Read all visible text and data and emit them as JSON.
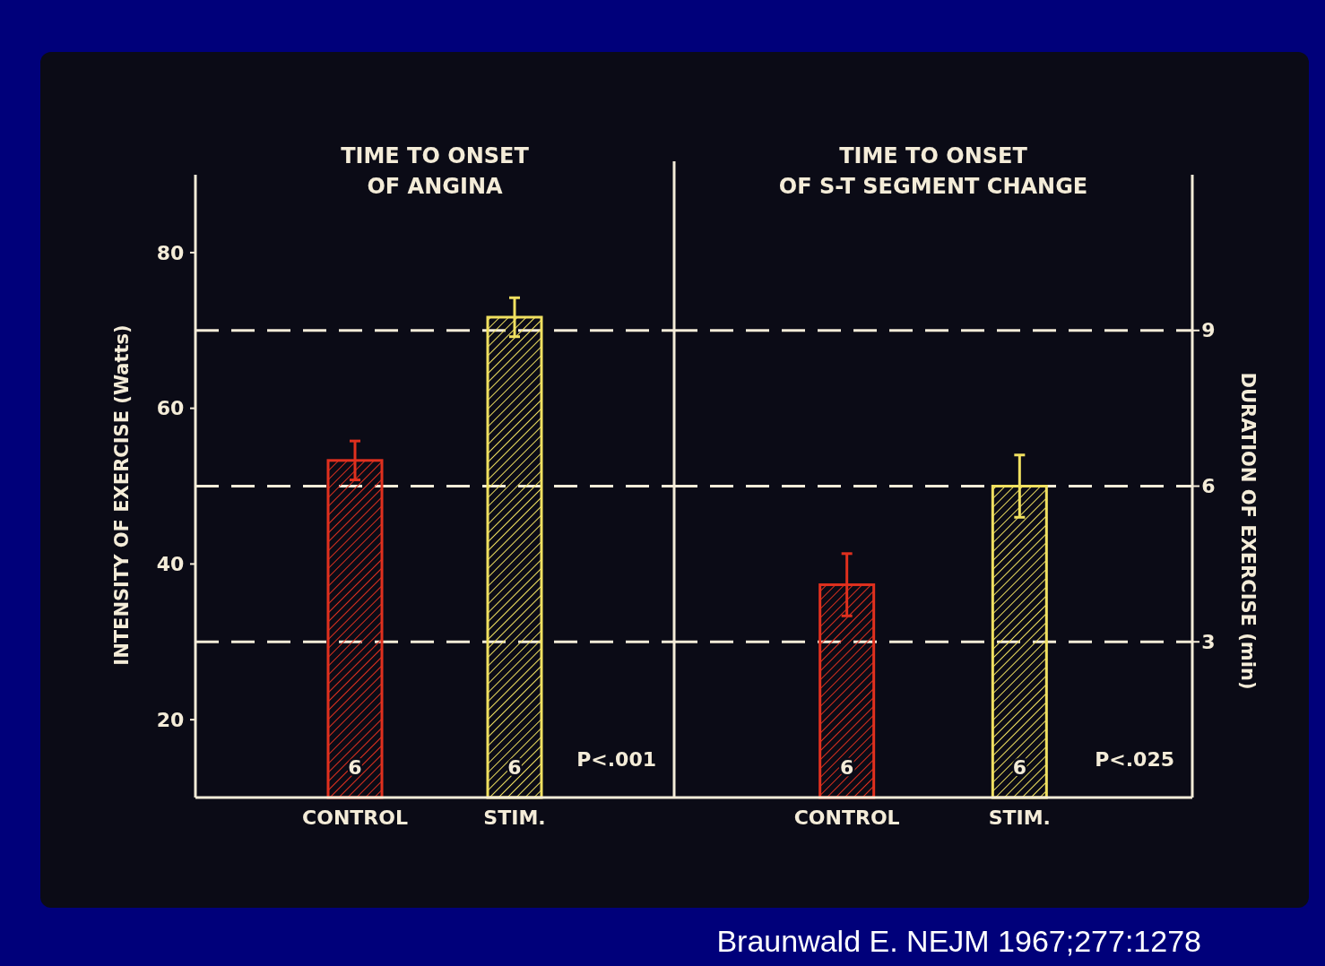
{
  "chart_data": [
    {
      "type": "bar",
      "title": "TIME TO ONSET\nOF ANGINA",
      "ylabel": "INTENSITY OF EXERCISE (Watts)",
      "categories": [
        "CONTROL",
        "STIM."
      ],
      "values": [
        53.3,
        71.7
      ],
      "errors": [
        2.5,
        2.5
      ],
      "colors": [
        "#e0301e",
        "#f0e060"
      ],
      "ylim": [
        10,
        90
      ],
      "yticks": [
        20,
        40,
        60,
        80
      ],
      "ref_lines": [
        {
          "axis": "y",
          "value": 30,
          "line_style": "dashed",
          "color": "#f4ecd8"
        },
        {
          "axis": "y",
          "value": 50,
          "line_style": "dashed",
          "color": "#f4ecd8"
        },
        {
          "axis": "y",
          "value": 70,
          "line_style": "dashed",
          "color": "#f4ecd8"
        }
      ],
      "annotations": [
        "6",
        "6",
        "P<.001"
      ]
    },
    {
      "type": "bar",
      "title": "TIME TO ONSET\nOF S-T SEGMENT CHANGE",
      "y2label": "DURATION OF EXERCISE (min)",
      "categories": [
        "CONTROL",
        "STIM."
      ],
      "colors": [
        "#e0301e",
        "#f0e060"
      ],
      "series": [
        {
          "values": [
            4.1,
            6.0
          ],
          "errors": [
            0.6,
            0.6
          ],
          "axis": "y2"
        }
      ],
      "y2lim": [
        0,
        12
      ],
      "y2ticks": [
        3,
        6,
        9
      ],
      "ref_lines": [
        {
          "axis": "y2",
          "value": 3,
          "line_style": "dashed",
          "color": "#f4ecd8"
        },
        {
          "axis": "y2",
          "value": 6,
          "line_style": "dashed",
          "color": "#f4ecd8"
        },
        {
          "axis": "y2",
          "value": 9,
          "line_style": "dashed",
          "color": "#f4ecd8"
        }
      ],
      "annotations": [
        "6",
        "6",
        "P<.025",
        "Braunwald E. NEJM 1967;277:1278"
      ]
    }
  ]
}
